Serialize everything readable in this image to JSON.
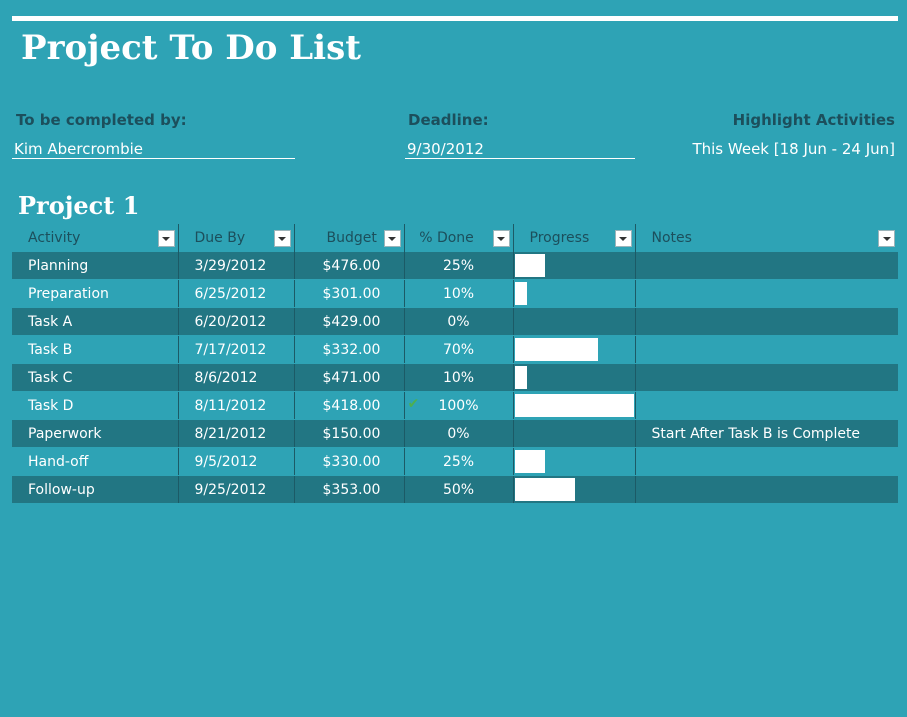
{
  "header": {
    "title": "Project To Do List",
    "completed_by_label": "To be completed by:",
    "completed_by_value": "Kim Abercrombie",
    "deadline_label": "Deadline:",
    "deadline_value": "9/30/2012",
    "highlight_label": "Highlight Activities",
    "highlight_value": "This Week [18 Jun - 24 Jun]"
  },
  "project": {
    "title": "Project 1",
    "columns": [
      "Activity",
      "Due By",
      "Budget",
      "% Done",
      "Progress",
      "Notes"
    ],
    "rows": [
      {
        "activity": "Planning",
        "due": "3/29/2012",
        "budget": "$476.00",
        "pct": "25%",
        "progress": 0.25,
        "notes": "",
        "check": false
      },
      {
        "activity": "Preparation",
        "due": "6/25/2012",
        "budget": "$301.00",
        "pct": "10%",
        "progress": 0.1,
        "notes": "",
        "check": false
      },
      {
        "activity": "Task A",
        "due": "6/20/2012",
        "budget": "$429.00",
        "pct": "0%",
        "progress": 0.0,
        "notes": "",
        "check": false
      },
      {
        "activity": "Task B",
        "due": "7/17/2012",
        "budget": "$332.00",
        "pct": "70%",
        "progress": 0.7,
        "notes": "",
        "check": false
      },
      {
        "activity": "Task C",
        "due": "8/6/2012",
        "budget": "$471.00",
        "pct": "10%",
        "progress": 0.1,
        "notes": "",
        "check": false
      },
      {
        "activity": "Task D",
        "due": "8/11/2012",
        "budget": "$418.00",
        "pct": "100%",
        "progress": 1.0,
        "notes": "",
        "check": true
      },
      {
        "activity": "Paperwork",
        "due": "8/21/2012",
        "budget": "$150.00",
        "pct": "0%",
        "progress": 0.0,
        "notes": "Start After Task B is Complete",
        "check": false
      },
      {
        "activity": "Hand-off",
        "due": "9/5/2012",
        "budget": "$330.00",
        "pct": "25%",
        "progress": 0.25,
        "notes": "",
        "check": false
      },
      {
        "activity": "Follow-up",
        "due": "9/25/2012",
        "budget": "$353.00",
        "pct": "50%",
        "progress": 0.5,
        "notes": "",
        "check": false
      }
    ]
  },
  "icons": {
    "filter": "dropdown-arrow-icon",
    "complete": "checkmark-icon"
  },
  "colors": {
    "background": "#2ea3b5",
    "row_dark": "#227683",
    "header_text": "#1c4f5c",
    "check": "#4caf50"
  }
}
